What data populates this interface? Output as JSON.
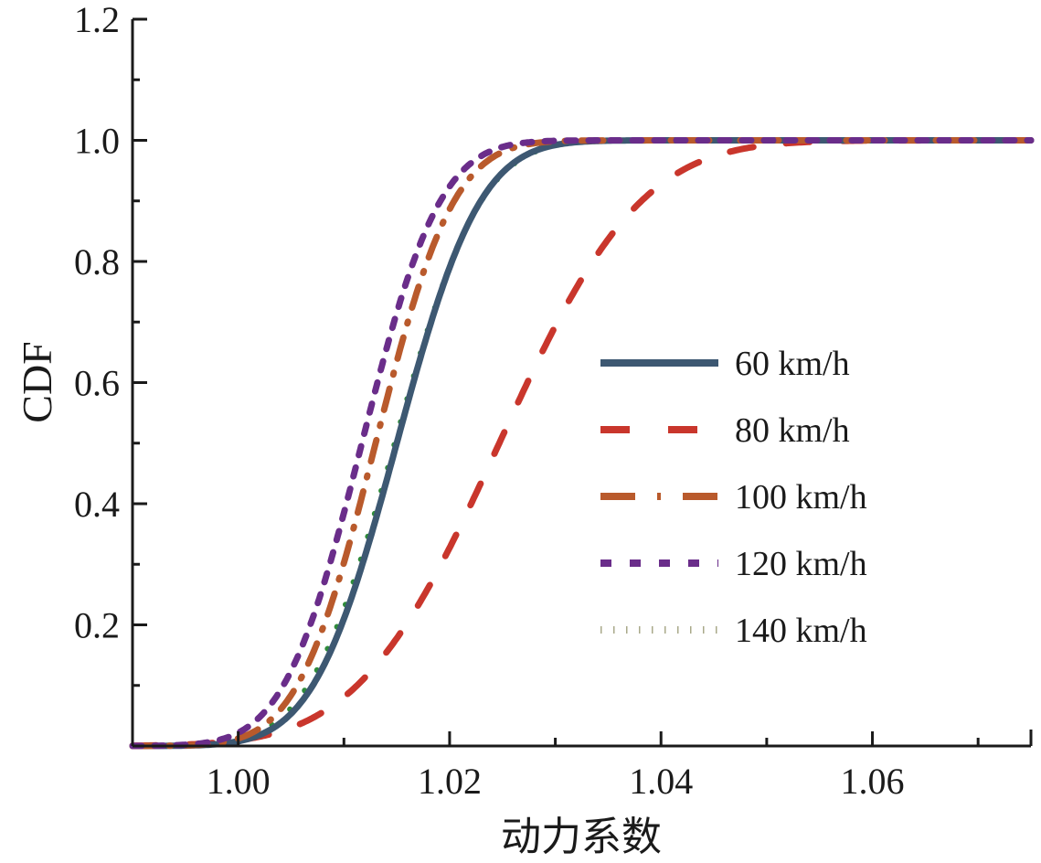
{
  "chart_data": {
    "type": "line",
    "title": "",
    "xlabel": "动力系数",
    "ylabel": "CDF",
    "xlim": [
      0.99,
      1.075
    ],
    "ylim": [
      0,
      1.2
    ],
    "xticks": [
      1.0,
      1.02,
      1.04,
      1.06
    ],
    "xtick_labels": [
      "1.00",
      "1.02",
      "1.04",
      "1.06"
    ],
    "yticks": [
      0.2,
      0.4,
      0.6,
      0.8,
      1.0,
      1.2
    ],
    "ytick_labels": [
      "0.2",
      "0.4",
      "0.6",
      "0.8",
      "1.0",
      "1.2"
    ],
    "grid": false,
    "legend_position": "center-right",
    "series": [
      {
        "name": "60 km/h",
        "color": "#3d5872",
        "style": "solid",
        "mean": 1.015,
        "std": 0.0062,
        "x": [
          0.99,
          1.0,
          1.005,
          1.01,
          1.015,
          1.02,
          1.025,
          1.03,
          1.035,
          1.04,
          1.075
        ],
        "y": [
          0.0,
          0.008,
          0.053,
          0.21,
          0.5,
          0.79,
          0.947,
          0.992,
          0.999,
          1.0,
          1.0
        ]
      },
      {
        "name": "80 km/h",
        "color": "#c9362c",
        "style": "dashed",
        "mean": 1.0247,
        "std": 0.0105,
        "x": [
          0.99,
          1.0,
          1.005,
          1.01,
          1.015,
          1.02,
          1.025,
          1.03,
          1.035,
          1.04,
          1.045,
          1.05,
          1.06,
          1.075
        ],
        "y": [
          0.0,
          0.009,
          0.03,
          0.081,
          0.178,
          0.327,
          0.511,
          0.694,
          0.836,
          0.928,
          0.973,
          0.992,
          1.0,
          1.0
        ]
      },
      {
        "name": "100 km/h",
        "color": "#b95a2c",
        "style": "dash-dot",
        "mean": 1.013,
        "std": 0.0058,
        "x": [
          0.99,
          1.0,
          1.005,
          1.01,
          1.015,
          1.02,
          1.025,
          1.03,
          1.035,
          1.075
        ],
        "y": [
          0.0,
          0.013,
          0.084,
          0.302,
          0.634,
          0.886,
          0.981,
          0.998,
          1.0,
          1.0
        ]
      },
      {
        "name": "120 km/h",
        "color": "#6a2d8a",
        "style": "dotted",
        "mean": 1.0117,
        "std": 0.0058,
        "x": [
          0.99,
          1.0,
          1.005,
          1.01,
          1.015,
          1.02,
          1.025,
          1.03,
          1.075
        ],
        "y": [
          0.0,
          0.022,
          0.124,
          0.384,
          0.716,
          0.924,
          0.989,
          0.999,
          1.0
        ]
      },
      {
        "name": "140 km/h",
        "color": "#2e8b3a",
        "style": "sparse-dots",
        "mean": 1.0148,
        "std": 0.0064,
        "x": [
          0.99,
          1.0,
          1.005,
          1.01,
          1.015,
          1.02,
          1.025,
          1.03,
          1.035,
          1.04,
          1.075
        ],
        "y": [
          0.0,
          0.01,
          0.063,
          0.227,
          0.512,
          0.787,
          0.941,
          0.99,
          0.999,
          1.0,
          1.0
        ]
      }
    ]
  }
}
